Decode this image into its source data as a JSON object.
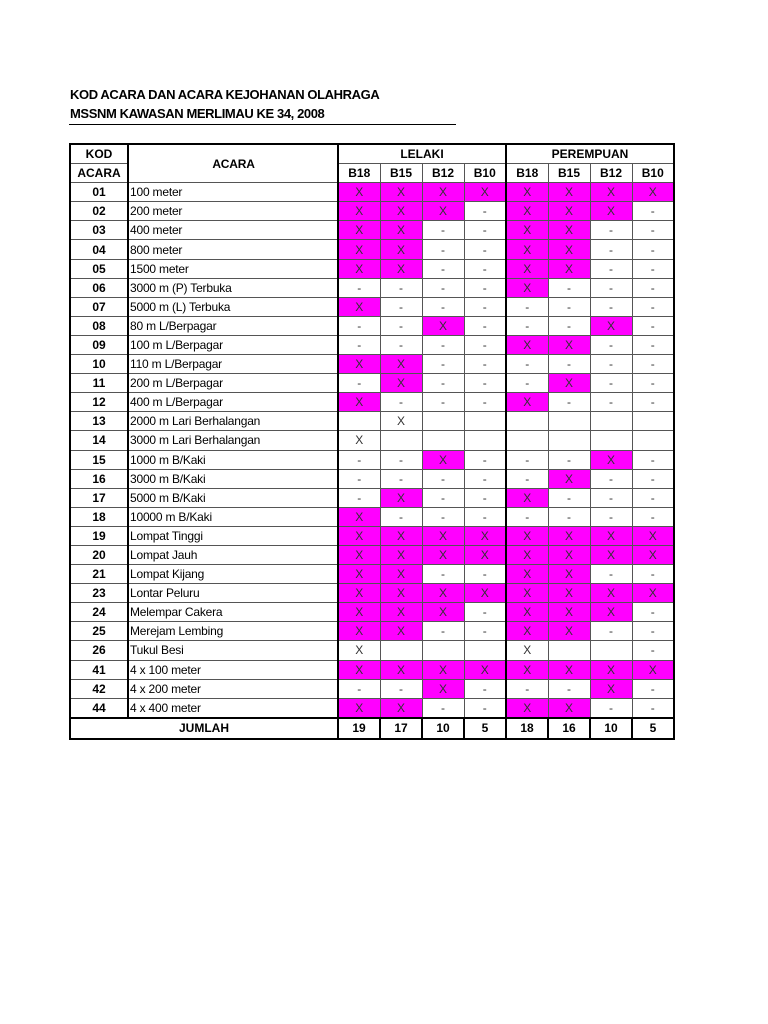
{
  "title_line1": "KOD ACARA DAN ACARA KEJOHANAN OLAHRAGA",
  "title_line2": "MSSNM KAWASAN MERLIMAU KE 34, 2008",
  "highlight_color": "#ff00ff",
  "header": {
    "kod": "KOD",
    "acara_label": "ACARA",
    "kod2": "ACARA",
    "acara": "ACARA",
    "lelaki": "LELAKI",
    "perempuan": "PEREMPUAN",
    "categories": [
      "B18",
      "B15",
      "B12",
      "B10",
      "B18",
      "B15",
      "B12",
      "B10"
    ]
  },
  "rows": [
    {
      "kod": "01",
      "acara": "100 meter",
      "cells": [
        "X",
        "X",
        "X",
        "X",
        "X",
        "X",
        "X",
        "X"
      ]
    },
    {
      "kod": "02",
      "acara": "200 meter",
      "cells": [
        "X",
        "X",
        "X",
        "-",
        "X",
        "X",
        "X",
        "-"
      ]
    },
    {
      "kod": "03",
      "acara": "400 meter",
      "cells": [
        "X",
        "X",
        "-",
        "-",
        "X",
        "X",
        "-",
        "-"
      ]
    },
    {
      "kod": "04",
      "acara": "800 meter",
      "cells": [
        "X",
        "X",
        "-",
        "-",
        "X",
        "X",
        "-",
        "-"
      ]
    },
    {
      "kod": "05",
      "acara": "1500 meter",
      "cells": [
        "X",
        "X",
        "-",
        "-",
        "X",
        "X",
        "-",
        "-"
      ]
    },
    {
      "kod": "06",
      "acara": "3000 m (P)  Terbuka",
      "cells": [
        "-",
        "-",
        "-",
        "-",
        "X",
        "-",
        "-",
        "-"
      ]
    },
    {
      "kod": "07",
      "acara": "5000 m (L)  Terbuka",
      "cells": [
        "X",
        "-",
        "-",
        "-",
        "-",
        "-",
        "-",
        "-"
      ]
    },
    {
      "kod": "08",
      "acara": "80 m L/Berpagar",
      "cells": [
        "-",
        "-",
        "X",
        "-",
        "-",
        "-",
        "X",
        "-"
      ]
    },
    {
      "kod": "09",
      "acara": "100 m L/Berpagar",
      "cells": [
        "-",
        "-",
        "-",
        "-",
        "X",
        "X",
        "-",
        "-"
      ]
    },
    {
      "kod": "10",
      "acara": "110 m L/Berpagar",
      "cells": [
        "X",
        "X",
        "-",
        "-",
        "-",
        "-",
        "-",
        "-"
      ]
    },
    {
      "kod": "11",
      "acara": "200 m L/Berpagar",
      "cells": [
        "-",
        "X",
        "-",
        "-",
        "-",
        "X",
        "-",
        "-"
      ]
    },
    {
      "kod": "12",
      "acara": "400 m L/Berpagar",
      "cells": [
        "X",
        "-",
        "-",
        "-",
        "X",
        "-",
        "-",
        "-"
      ]
    },
    {
      "kod": "13",
      "acara": "2000 m Lari Berhalangan",
      "plain": true,
      "cells": [
        "",
        "X",
        "",
        "",
        "",
        "",
        "",
        ""
      ]
    },
    {
      "kod": "14",
      "acara": "3000 m Lari Berhalangan",
      "plain": true,
      "cells": [
        "X",
        "",
        "",
        "",
        "",
        "",
        "",
        ""
      ]
    },
    {
      "kod": "15",
      "acara": "1000 m B/Kaki",
      "cells": [
        "-",
        "-",
        "X",
        "-",
        "-",
        "-",
        "X",
        "-"
      ]
    },
    {
      "kod": "16",
      "acara": "3000 m B/Kaki",
      "cells": [
        "-",
        "-",
        "-",
        "-",
        "-",
        "X",
        "-",
        "-"
      ]
    },
    {
      "kod": "17",
      "acara": "5000 m B/Kaki",
      "cells": [
        "-",
        "X",
        "-",
        "-",
        "X",
        "-",
        "-",
        "-"
      ]
    },
    {
      "kod": "18",
      "acara": "10000 m B/Kaki",
      "cells": [
        "X",
        "-",
        "-",
        "-",
        "-",
        "-",
        "-",
        "-"
      ]
    },
    {
      "kod": "19",
      "acara": "Lompat Tinggi",
      "cells": [
        "X",
        "X",
        "X",
        "X",
        "X",
        "X",
        "X",
        "X"
      ]
    },
    {
      "kod": "20",
      "acara": "Lompat Jauh",
      "cells": [
        "X",
        "X",
        "X",
        "X",
        "X",
        "X",
        "X",
        "X"
      ]
    },
    {
      "kod": "21",
      "acara": "Lompat Kijang",
      "cells": [
        "X",
        "X",
        "-",
        "-",
        "X",
        "X",
        "-",
        "-"
      ]
    },
    {
      "kod": "23",
      "acara": "Lontar Peluru",
      "cells": [
        "X",
        "X",
        "X",
        "X",
        "X",
        "X",
        "X",
        "X"
      ]
    },
    {
      "kod": "24",
      "acara": "Melempar Cakera",
      "cells": [
        "X",
        "X",
        "X",
        "-",
        "X",
        "X",
        "X",
        "-"
      ]
    },
    {
      "kod": "25",
      "acara": "Merejam Lembing",
      "cells": [
        "X",
        "X",
        "-",
        "-",
        "X",
        "X",
        "-",
        "-"
      ]
    },
    {
      "kod": "26",
      "acara": "Tukul Besi",
      "plain": true,
      "cells": [
        "X",
        "",
        "",
        "",
        "X",
        "",
        "",
        "-"
      ]
    },
    {
      "kod": "41",
      "acara": "4 x 100 meter",
      "cells": [
        "X",
        "X",
        "X",
        "X",
        "X",
        "X",
        "X",
        "X"
      ]
    },
    {
      "kod": "42",
      "acara": "4 x 200 meter",
      "cells": [
        "-",
        "-",
        "X",
        "-",
        "-",
        "-",
        "X",
        "-"
      ]
    },
    {
      "kod": "44",
      "acara": "4 x 400 meter",
      "cells": [
        "X",
        "X",
        "-",
        "-",
        "X",
        "X",
        "-",
        "-"
      ]
    }
  ],
  "total": {
    "label": "JUMLAH",
    "values": [
      "19",
      "17",
      "10",
      "5",
      "18",
      "16",
      "10",
      "5"
    ]
  }
}
